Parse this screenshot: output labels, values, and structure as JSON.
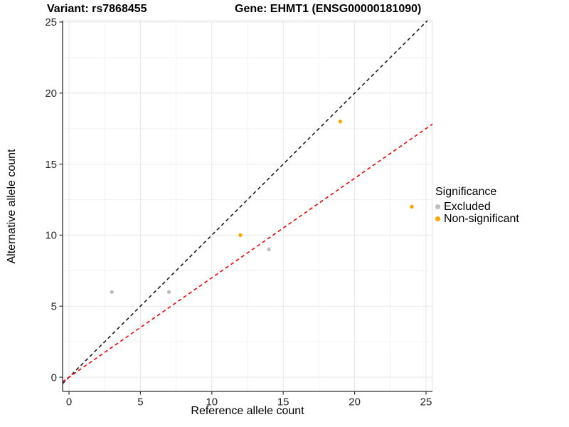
{
  "chart_data": {
    "type": "scatter",
    "title_left": "Variant: rs7868455",
    "title_right": "Gene: EHMT1 (ENSG00000181090)",
    "xlabel": "Reference allele count",
    "ylabel": "Alternative allele count",
    "xlim": [
      -0.45,
      25.45
    ],
    "ylim": [
      -1.0,
      25.1
    ],
    "xticks": [
      0,
      5,
      10,
      15,
      20,
      25
    ],
    "yticks": [
      0,
      5,
      10,
      15,
      20,
      25
    ],
    "xminor": [
      2.5,
      7.5,
      12.5,
      17.5,
      22.5
    ],
    "yminor": [
      2.5,
      7.5,
      12.5,
      17.5,
      22.5
    ],
    "grid": true,
    "legend": {
      "title": "Significance",
      "position": "right"
    },
    "series": [
      {
        "name": "Excluded",
        "color": "#BEBEBE",
        "points": [
          [
            3,
            6
          ],
          [
            7,
            6
          ],
          [
            14,
            9
          ]
        ]
      },
      {
        "name": "Non-significant",
        "color": "#FFA500",
        "points": [
          [
            12,
            10
          ],
          [
            19,
            18
          ],
          [
            24,
            12
          ]
        ]
      }
    ],
    "lines": [
      {
        "name": "identity-line",
        "color": "#1A1A1A",
        "slope": 1.0,
        "intercept": 0,
        "dash": "5,4"
      },
      {
        "name": "fit-line",
        "color": "#FF0000",
        "slope": 0.7,
        "intercept": 0,
        "dash": "5,4"
      }
    ]
  }
}
